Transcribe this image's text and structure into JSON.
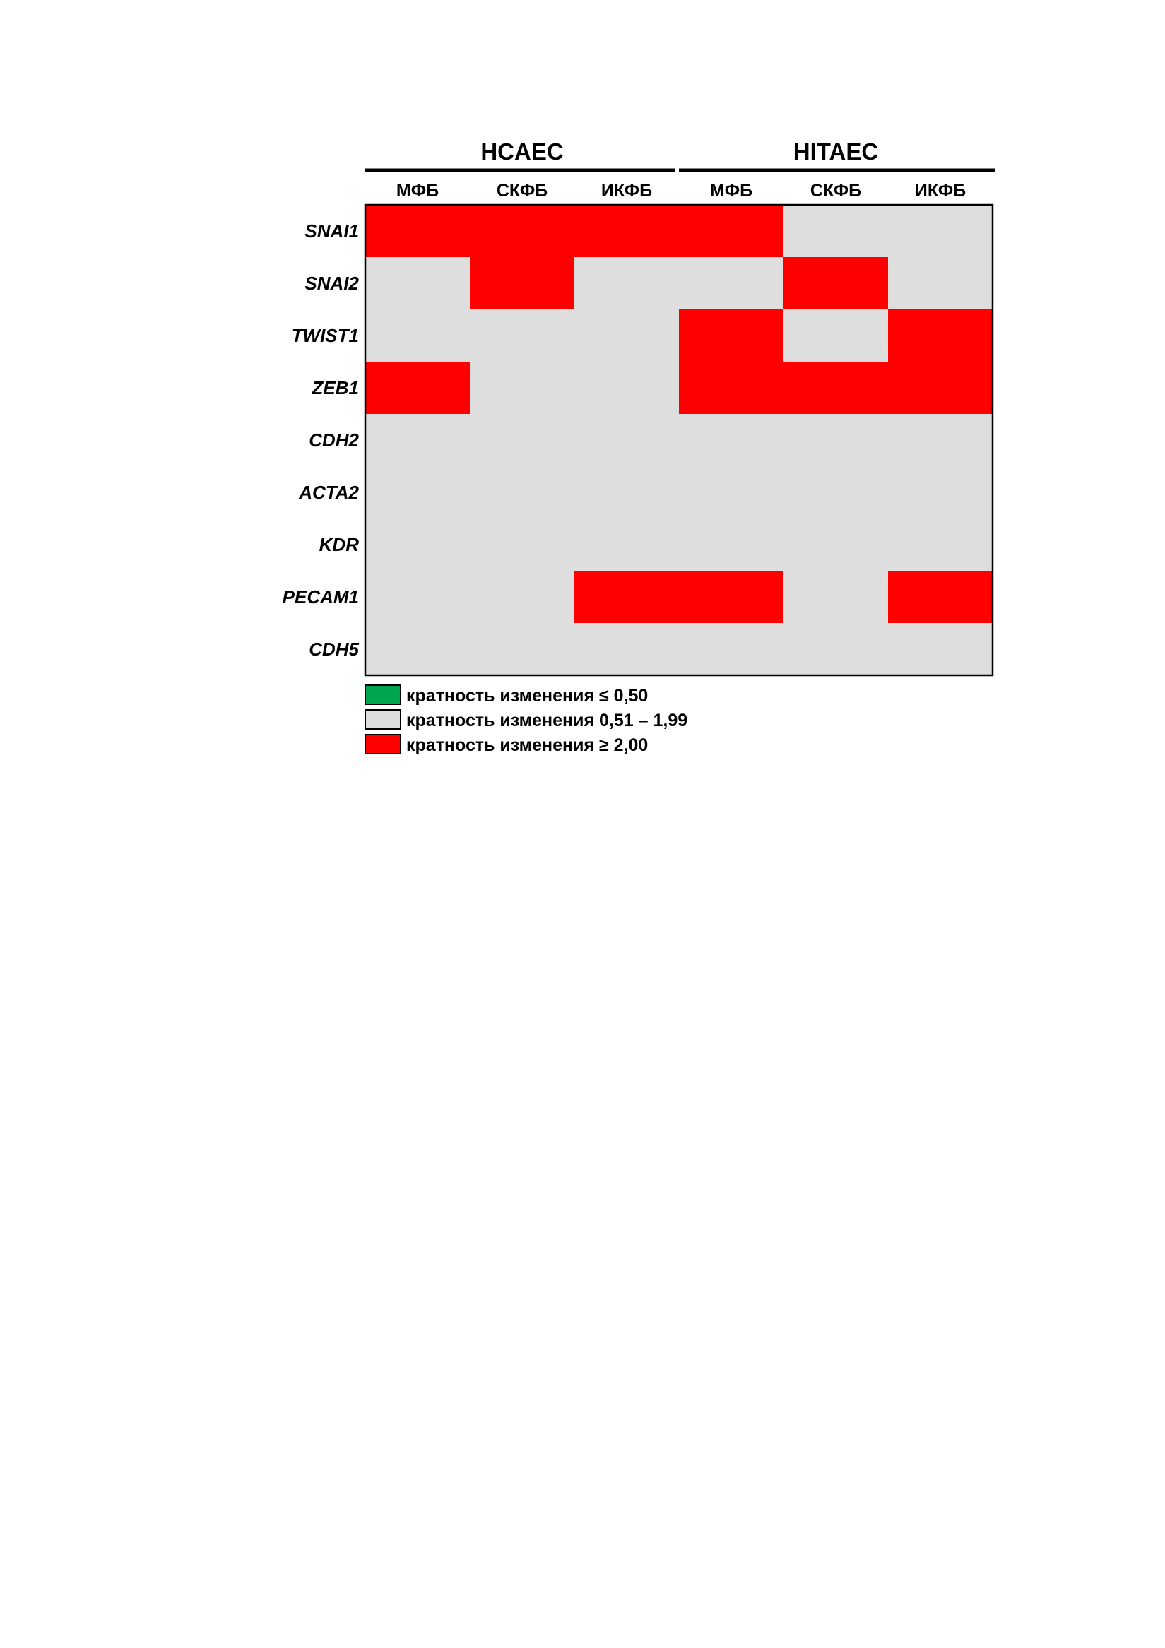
{
  "chart_data": {
    "type": "heatmap",
    "groups": [
      {
        "label": "HCAEC",
        "columns": [
          "МФБ",
          "СКФБ",
          "ИКФБ"
        ]
      },
      {
        "label": "HITAEC",
        "columns": [
          "МФБ",
          "СКФБ",
          "ИКФБ"
        ]
      }
    ],
    "rows": [
      "SNAI1",
      "SNAI2",
      "TWIST1",
      "ZEB1",
      "CDH2",
      "ACTA2",
      "KDR",
      "PECAM1",
      "CDH5"
    ],
    "category_key": [
      "down",
      "neutral",
      "up"
    ],
    "values": [
      [
        "up",
        "up",
        "up",
        "up",
        "neutral",
        "neutral"
      ],
      [
        "neutral",
        "up",
        "neutral",
        "neutral",
        "up",
        "neutral"
      ],
      [
        "neutral",
        "neutral",
        "neutral",
        "up",
        "neutral",
        "up"
      ],
      [
        "up",
        "neutral",
        "neutral",
        "up",
        "up",
        "up"
      ],
      [
        "neutral",
        "neutral",
        "neutral",
        "neutral",
        "neutral",
        "neutral"
      ],
      [
        "neutral",
        "neutral",
        "neutral",
        "neutral",
        "neutral",
        "neutral"
      ],
      [
        "neutral",
        "neutral",
        "neutral",
        "neutral",
        "neutral",
        "neutral"
      ],
      [
        "neutral",
        "neutral",
        "up",
        "up",
        "neutral",
        "up"
      ],
      [
        "neutral",
        "neutral",
        "neutral",
        "neutral",
        "neutral",
        "neutral"
      ]
    ],
    "colors": {
      "down": "#00a550",
      "neutral": "#dedede",
      "up": "#ff0000",
      "border": "#000000"
    },
    "legend": [
      {
        "key": "down",
        "label": "кратность изменения ≤ 0,50"
      },
      {
        "key": "neutral",
        "label": "кратность изменения 0,51 – 1,99"
      },
      {
        "key": "up",
        "label": "кратность изменения ≥ 2,00"
      }
    ],
    "legend_placement": "bottom-left"
  }
}
